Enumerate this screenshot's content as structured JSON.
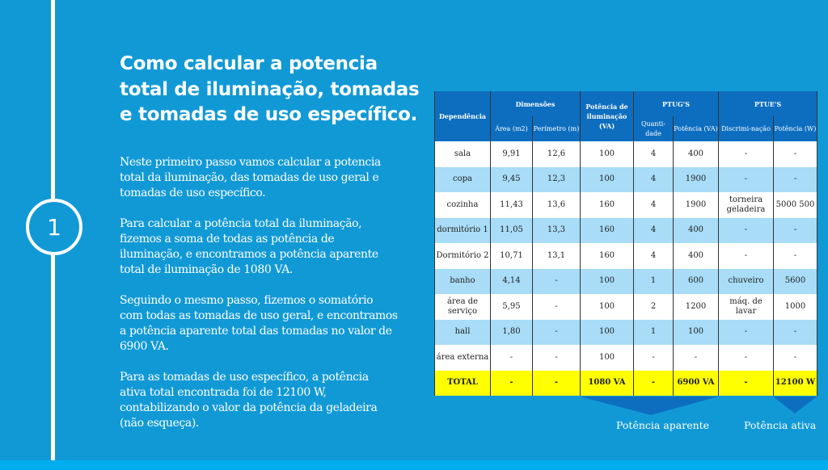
{
  "step_number": "1",
  "title": [
    "Como calcular a potencia",
    "total de iluminação, tomadas",
    "e tomadas de uso específico."
  ],
  "paragraphs": [
    [
      "Neste primeiro passo vamos calcular a potencia",
      "total da iluminação, das tomadas de uso geral e",
      "tomadas de uso específico."
    ],
    [
      "Para calcular a potência total da iluminação,",
      "fizemos a soma de todas as potência de",
      "iluminação,  e encontramos a potência aparente",
      "total de iluminação de 1080 VA."
    ],
    [
      "Seguindo o mesmo passo, fizemos o somatório",
      "com todas as tomadas de uso geral, e encontramos",
      "a potência aparente total das tomadas no valor de",
      "6900 VA."
    ],
    [
      "Para as tomadas de uso específico, a potência",
      "ativa total encontrada foi de 12100 W,",
      "contabilizando o valor da potência da geladeira",
      "(não esqueça)."
    ]
  ],
  "table": {
    "headers": {
      "dependencia": "Dependência",
      "dimensoes": "Dimensões",
      "area": "Área (m2)",
      "perimetro": "Perímetro (m)",
      "iluminacao": "Potência de iluminação (VA)",
      "ptugs": "PTUG'S",
      "quantidade": "Quanti-dade",
      "potencia_va": "Potência (VA)",
      "ptues": "PTUE'S",
      "discriminacao": "Discrimi-nação",
      "potencia_w": "Potência (W)"
    },
    "rows": [
      [
        "sala",
        "9,91",
        "12,6",
        "100",
        "4",
        "400",
        "-",
        "-"
      ],
      [
        "copa",
        "9,45",
        "12,3",
        "100",
        "4",
        "1900",
        "-",
        "-"
      ],
      [
        "cozinha",
        "11,43",
        "13,6",
        "160",
        "4",
        "1900",
        "torneira geladeira",
        "5000 500"
      ],
      [
        "dormitório 1",
        "11,05",
        "13,3",
        "160",
        "4",
        "400",
        "-",
        "-"
      ],
      [
        "Dormitório 2",
        "10,71",
        "13,1",
        "160",
        "4",
        "400",
        "-",
        "-"
      ],
      [
        "banho",
        "4,14",
        "-",
        "100",
        "1",
        "600",
        "chuveiro",
        "5600"
      ],
      [
        "área de serviço",
        "5,95",
        "-",
        "100",
        "2",
        "1200",
        "máq. de lavar",
        "1000"
      ],
      [
        "hall",
        "1,80",
        "-",
        "100",
        "1",
        "100",
        "-",
        "-"
      ],
      [
        "área externa",
        "-",
        "-",
        "100",
        "-",
        "-",
        "-",
        "-"
      ]
    ],
    "total": [
      "TOTAL",
      "-",
      "-",
      "1080 VA",
      "-",
      "6900 VA",
      "-",
      "12100 W"
    ]
  },
  "labels": {
    "aparente": "Potência aparente",
    "ativa": "Potência ativa"
  },
  "colors": {
    "background": "#1199d6",
    "header": "#0d6ebf",
    "row_light": "#a8dcf7",
    "total": "#ffff00",
    "arrow": "#0d6ebf"
  }
}
